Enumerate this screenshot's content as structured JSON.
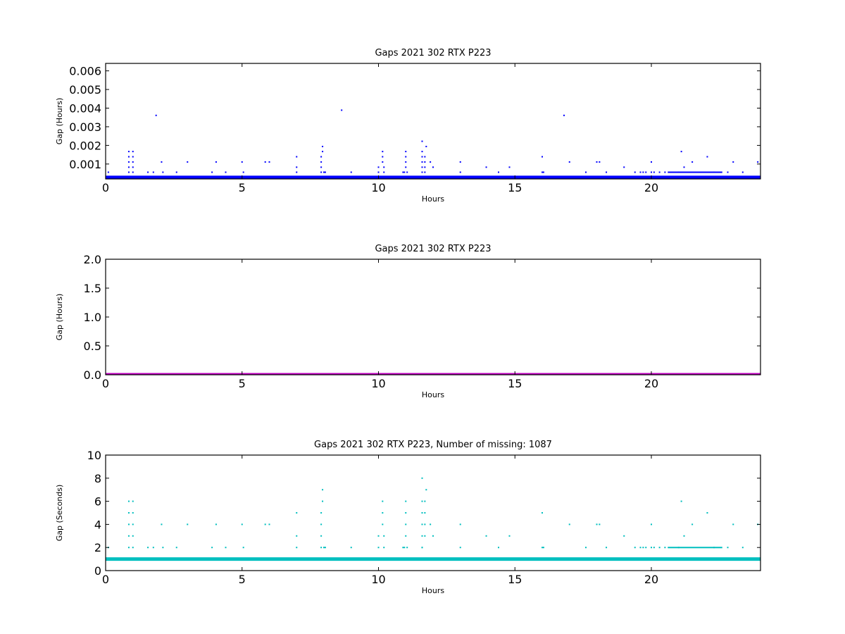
{
  "chart_data": [
    {
      "type": "scatter",
      "title": "Gaps 2021 302 RTX  P223",
      "xlabel": "Hours",
      "ylabel": "Gap (Hours)",
      "xlim": [
        0,
        24
      ],
      "ylim": [
        0.0002,
        0.0064
      ],
      "xticks": [
        "0",
        "5",
        "10",
        "15",
        "20"
      ],
      "yticks": [
        "0.001",
        "0.002",
        "0.003",
        "0.004",
        "0.005",
        "0.006"
      ],
      "color": "#0000ff",
      "baseline": 0.000278,
      "series": [
        {
          "x": [
            0.1,
            0.85,
            0.85,
            0.85,
            0.85,
            0.85,
            1.0,
            1.0,
            1.0,
            1.0,
            1.0,
            1.55,
            1.75,
            1.85,
            2.05,
            2.1,
            2.6,
            3.0,
            3.9,
            4.05,
            4.4,
            5.0,
            5.05,
            5.85,
            6.0,
            7.0,
            7.0,
            7.0,
            7.9,
            7.9,
            7.9,
            7.9,
            7.95,
            7.95,
            8.0,
            8.05,
            8.65,
            9.0,
            10.0,
            10.0,
            10.15,
            10.15,
            10.15,
            10.2,
            10.2,
            10.9,
            10.95,
            11.0,
            11.0,
            11.0,
            11.0,
            11.05,
            11.6,
            11.6,
            11.6,
            11.6,
            11.6,
            11.6,
            11.7,
            11.7,
            11.7,
            11.7,
            11.75,
            11.9,
            12.0,
            13.0,
            13.0,
            13.95,
            14.4,
            14.8,
            16.0,
            16.0,
            16.05,
            16.8,
            17.0,
            17.6,
            18.0,
            18.1,
            18.35,
            19.0,
            19.4,
            19.6,
            19.7,
            19.8,
            20.0,
            20.0,
            20.1,
            20.3,
            20.5,
            21.0,
            21.1,
            21.5,
            21.2,
            22.05,
            22.3,
            22.8,
            23.0,
            23.35,
            23.9
          ],
          "y": [
            0.00056,
            0.00056,
            0.00083,
            0.00111,
            0.00139,
            0.00167,
            0.00056,
            0.00083,
            0.00111,
            0.00139,
            0.00167,
            0.00056,
            0.00056,
            0.00361,
            0.00111,
            0.00056,
            0.00056,
            0.00111,
            0.00056,
            0.00111,
            0.00056,
            0.00111,
            0.00056,
            0.00111,
            0.00111,
            0.00056,
            0.00083,
            0.00139,
            0.00056,
            0.00083,
            0.00111,
            0.00139,
            0.00167,
            0.00194,
            0.00056,
            0.00056,
            0.00389,
            0.00056,
            0.00056,
            0.00083,
            0.00111,
            0.00139,
            0.00167,
            0.00083,
            0.00056,
            0.00056,
            0.00056,
            0.00083,
            0.00111,
            0.00139,
            0.00167,
            0.00056,
            0.00222,
            0.00056,
            0.00083,
            0.00111,
            0.00139,
            0.00167,
            0.00056,
            0.00083,
            0.00111,
            0.00139,
            0.00194,
            0.00111,
            0.00083,
            0.00111,
            0.00056,
            0.00083,
            0.00056,
            0.00083,
            0.00056,
            0.00139,
            0.00056,
            0.00361,
            0.00111,
            0.00056,
            0.00111,
            0.00111,
            0.00056,
            0.00083,
            0.00056,
            0.00056,
            0.00056,
            0.00056,
            0.00056,
            0.00111,
            0.00056,
            0.00056,
            0.00056,
            0.00056,
            0.00167,
            0.00111,
            0.00083,
            0.00139,
            0.00056,
            0.00056,
            0.00111,
            0.00056,
            0.00111
          ]
        }
      ],
      "dense_bands": [
        {
          "x_start": 20.6,
          "x_end": 22.6,
          "y": 0.00056
        }
      ]
    },
    {
      "type": "scatter",
      "title": "Gaps 2021 302 RTX  P223",
      "xlabel": "Hours",
      "ylabel": "Gap (Hours)",
      "xlim": [
        0,
        24
      ],
      "ylim": [
        0.0,
        2.0
      ],
      "xticks": [
        "0",
        "5",
        "10",
        "15",
        "20"
      ],
      "yticks": [
        "0.0",
        "0.5",
        "1.0",
        "1.5",
        "2.0"
      ],
      "color": "#bf00bf",
      "baseline": 0.0
    },
    {
      "type": "scatter",
      "title": "Gaps 2021 302 RTX  P223, Number of missing: 1087",
      "xlabel": "Hours",
      "ylabel": "Gap (Seconds)",
      "xlim": [
        0,
        24
      ],
      "ylim": [
        0,
        10
      ],
      "xticks": [
        "0",
        "5",
        "10",
        "15",
        "20"
      ],
      "yticks": [
        "0",
        "2",
        "4",
        "6",
        "8",
        "10"
      ],
      "color": "#00bfbf",
      "baseline": 1,
      "series": [
        {
          "x": [
            0.1,
            0.85,
            0.85,
            0.85,
            0.85,
            0.85,
            1.0,
            1.0,
            1.0,
            1.0,
            1.0,
            1.55,
            1.75,
            2.05,
            2.1,
            2.6,
            3.0,
            3.9,
            4.05,
            4.4,
            5.0,
            5.05,
            5.85,
            6.0,
            7.0,
            7.0,
            7.0,
            7.9,
            7.9,
            7.9,
            7.9,
            7.95,
            7.95,
            8.0,
            8.05,
            9.0,
            10.0,
            10.0,
            10.15,
            10.15,
            10.15,
            10.2,
            10.2,
            10.9,
            10.95,
            11.0,
            11.0,
            11.0,
            11.0,
            11.05,
            11.6,
            11.6,
            11.6,
            11.6,
            11.6,
            11.6,
            11.6,
            11.7,
            11.7,
            11.7,
            11.7,
            11.75,
            11.9,
            12.0,
            13.0,
            13.0,
            13.95,
            14.4,
            14.8,
            16.0,
            16.0,
            16.05,
            17.0,
            17.6,
            18.0,
            18.1,
            18.35,
            19.0,
            19.4,
            19.6,
            19.7,
            19.8,
            20.0,
            20.0,
            20.1,
            20.3,
            20.5,
            21.0,
            21.1,
            21.5,
            21.2,
            22.05,
            22.3,
            22.8,
            23.0,
            23.35,
            23.9
          ],
          "y": [
            2,
            2,
            3,
            4,
            5,
            6,
            2,
            3,
            4,
            5,
            6,
            2,
            2,
            4,
            2,
            2,
            4,
            2,
            4,
            2,
            4,
            2,
            4,
            4,
            2,
            3,
            5,
            2,
            3,
            4,
            5,
            6,
            7,
            2,
            2,
            2,
            2,
            3,
            4,
            5,
            6,
            3,
            2,
            2,
            2,
            3,
            4,
            5,
            6,
            2,
            8,
            2,
            3,
            4,
            5,
            6,
            2,
            3,
            4,
            5,
            6,
            7,
            4,
            3,
            4,
            2,
            3,
            2,
            3,
            2,
            5,
            2,
            4,
            2,
            4,
            4,
            2,
            3,
            2,
            2,
            2,
            2,
            2,
            4,
            2,
            2,
            2,
            2,
            6,
            4,
            3,
            5,
            2,
            2,
            4,
            2,
            4
          ]
        }
      ],
      "dense_bands": [
        {
          "x_start": 20.6,
          "x_end": 22.6,
          "y": 2
        }
      ]
    }
  ]
}
